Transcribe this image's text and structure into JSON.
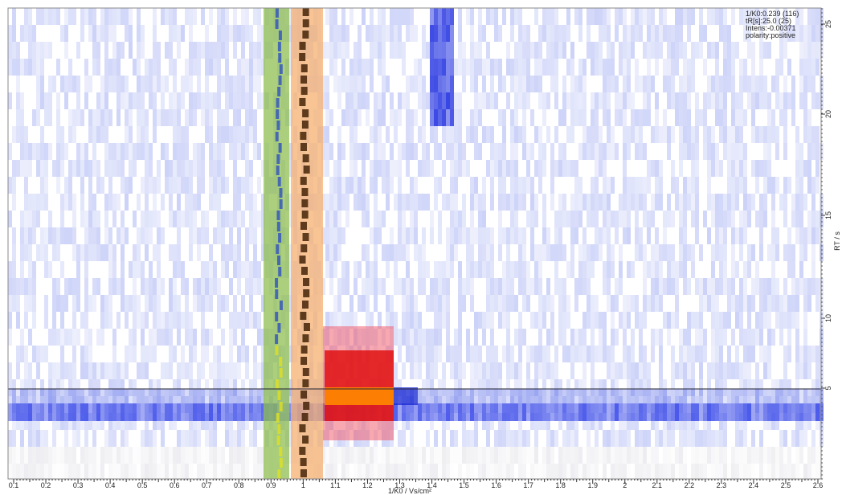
{
  "info": {
    "lines": [
      "1/K0:0.239  (116)",
      "tR[s]:25.0  (25)",
      "Intens:-0.00371",
      "polarity:positive"
    ]
  },
  "x_axis": {
    "label": "1/K0 / Vs/cm²",
    "ticks": [
      "0.1",
      "0.2",
      "0.3",
      "0.4",
      "0.5",
      "0.6",
      "0.7",
      "0.8",
      "0.9",
      "1",
      "1.1",
      "1.2",
      "1.3",
      "1.4",
      "1.5",
      "1.6",
      "1.7",
      "1.8",
      "1.9",
      "2",
      "2.1",
      "2.2",
      "2.3",
      "2.4",
      "2.5",
      "2.6"
    ]
  },
  "y_axis": {
    "label": "RT / s",
    "ticks": [
      "5",
      "10",
      "15",
      "20",
      "25"
    ]
  }
}
